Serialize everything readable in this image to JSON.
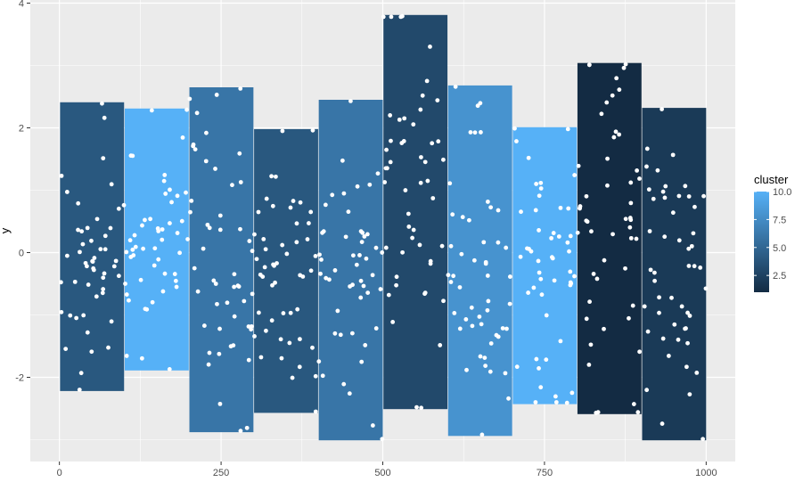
{
  "chart_data": {
    "type": "bar",
    "title": "",
    "xlabel": "",
    "ylabel": "y",
    "xlim": [
      -45,
      1045
    ],
    "ylim": [
      -3.35,
      4.05
    ],
    "x_ticks": [
      {
        "value": 0,
        "label": "0"
      },
      {
        "value": 250,
        "label": "250"
      },
      {
        "value": 500,
        "label": "500"
      },
      {
        "value": 750,
        "label": "750"
      },
      {
        "value": 1000,
        "label": "1000"
      }
    ],
    "y_ticks": [
      {
        "value": -2,
        "label": "-2"
      },
      {
        "value": 0,
        "label": "0"
      },
      {
        "value": 2,
        "label": "2"
      },
      {
        "value": 4,
        "label": "4"
      }
    ],
    "grid": true,
    "background": "#ebebeb",
    "bars": [
      {
        "cluster": 4,
        "xmin": 1,
        "xmax": 100,
        "ymin": -2.22,
        "ymax": 2.41
      },
      {
        "cluster": 10,
        "xmin": 101,
        "xmax": 200,
        "ymin": -1.89,
        "ymax": 2.31
      },
      {
        "cluster": 6,
        "xmin": 201,
        "xmax": 300,
        "ymin": -2.88,
        "ymax": 2.65
      },
      {
        "cluster": 4,
        "xmin": 301,
        "xmax": 400,
        "ymin": -2.57,
        "ymax": 1.98
      },
      {
        "cluster": 6,
        "xmin": 401,
        "xmax": 500,
        "ymin": -3.01,
        "ymax": 2.45
      },
      {
        "cluster": 3,
        "xmin": 501,
        "xmax": 600,
        "ymin": -2.51,
        "ymax": 3.81
      },
      {
        "cluster": 8,
        "xmin": 601,
        "xmax": 700,
        "ymin": -2.94,
        "ymax": 2.68
      },
      {
        "cluster": 10,
        "xmin": 701,
        "xmax": 800,
        "ymin": -2.43,
        "ymax": 2.01
      },
      {
        "cluster": 1,
        "xmin": 801,
        "xmax": 900,
        "ymin": -2.59,
        "ymax": 3.04
      },
      {
        "cluster": 2,
        "xmin": 901,
        "xmax": 1000,
        "ymin": -3.01,
        "ymax": 2.32
      }
    ],
    "points_per_bar": 50,
    "point_color": "#ffffff",
    "legend": {
      "title": "cluster",
      "placement": "right",
      "range": [
        1,
        10
      ],
      "low_color": "#132b43",
      "high_color": "#56b1f7",
      "breaks": [
        {
          "value": 10,
          "label": "10.0"
        },
        {
          "value": 7.5,
          "label": "7.5"
        },
        {
          "value": 5,
          "label": "5.0"
        },
        {
          "value": 2.5,
          "label": "2.5"
        }
      ]
    }
  }
}
